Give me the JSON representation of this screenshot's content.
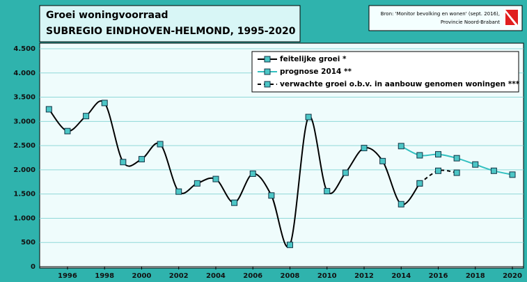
{
  "chart_data": {
    "type": "line",
    "title": "Groei woningvoorraad",
    "subtitle": "SUBREGIO EINDHOVEN-HELMOND, 1995-2020",
    "source": [
      "Bron: 'Monitor bevolking en wonen' (sept. 2016),",
      "Provincie Noord-Brabant"
    ],
    "xlim": [
      1994.5,
      2020.6
    ],
    "xticks": [
      1996,
      1998,
      2000,
      2002,
      2004,
      2006,
      2008,
      2010,
      2012,
      2014,
      2016,
      2018,
      2020
    ],
    "ylim": [
      0,
      4500
    ],
    "yticks": [
      0,
      500,
      {
        "value": 1000,
        "label": "1.000"
      },
      {
        "value": 1500,
        "label": "1.500"
      },
      {
        "value": 2000,
        "label": "2.000"
      },
      {
        "value": 2500,
        "label": "2.500"
      },
      {
        "value": 3000,
        "label": "3.000"
      },
      {
        "value": 3500,
        "label": "3.500"
      },
      {
        "value": 4000,
        "label": "4.000"
      },
      {
        "value": 4500,
        "label": "4.500"
      }
    ],
    "grid": true,
    "legend": "top-right",
    "series": [
      {
        "name": "feitelijke groei *",
        "color": "#000000",
        "dashed": false,
        "x": [
          1995,
          1996,
          1997,
          1998,
          1999,
          2000,
          2001,
          2002,
          2003,
          2004,
          2005,
          2006,
          2007,
          2008,
          2009,
          2010,
          2011,
          2012,
          2013,
          2014,
          2015
        ],
        "values": [
          3250,
          2800,
          3110,
          3380,
          2160,
          2220,
          2530,
          1550,
          1720,
          1810,
          1320,
          1920,
          1470,
          450,
          3090,
          1560,
          1940,
          2450,
          2180,
          1290,
          1720
        ]
      },
      {
        "name": "prognose 2014 **",
        "color": "#33c0c0",
        "dashed": false,
        "x": [
          2014,
          2015,
          2016,
          2017,
          2018,
          2019,
          2020
        ],
        "values": [
          2490,
          2300,
          2320,
          2240,
          2110,
          1980,
          1900
        ]
      },
      {
        "name": "verwachte groei o.b.v. in aanbouw genomen woningen ***",
        "color": "#000000",
        "dashed": true,
        "x": [
          2015,
          2016,
          2017
        ],
        "values": [
          1720,
          1980,
          1940
        ]
      }
    ]
  }
}
